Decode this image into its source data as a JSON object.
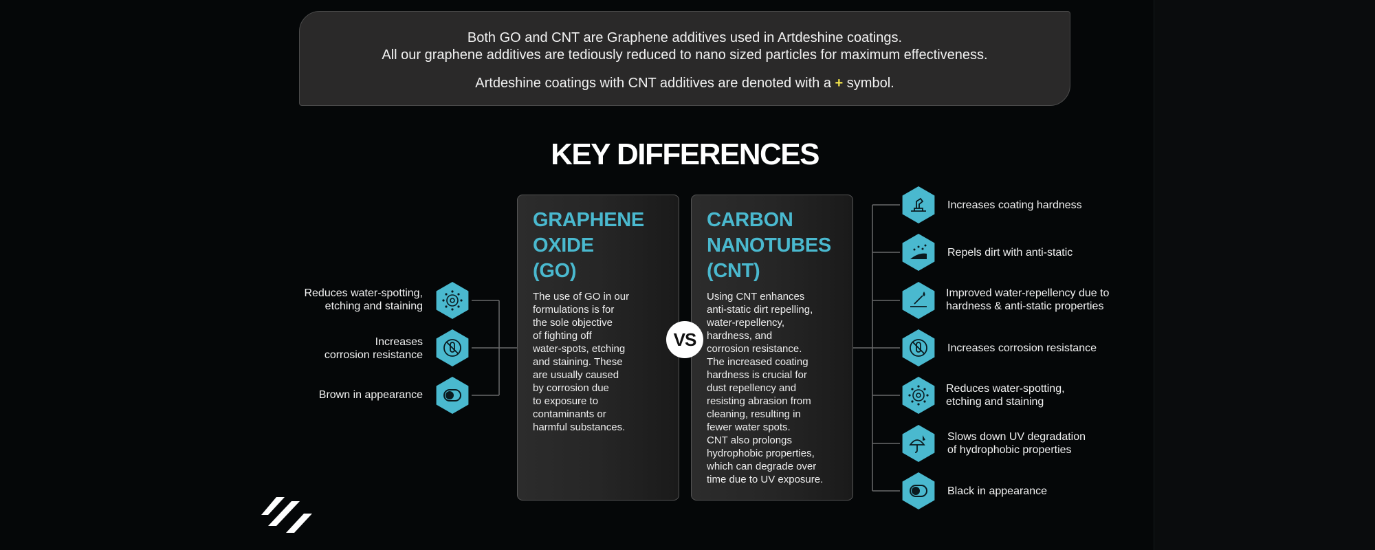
{
  "colors": {
    "accent": "#4ab9cf",
    "plus": "#f2e34a",
    "background": "#050708",
    "box": "#2a2929"
  },
  "intro": {
    "line1": "Both GO and CNT are Graphene additives used in Artdeshine coatings.",
    "line2": "All our graphene additives are tediously reduced to nano sized particles for maximum effectiveness.",
    "line3_before": "Artdeshine coatings with CNT additives are denoted with a",
    "line3_symbol": "+",
    "line3_after": "symbol."
  },
  "title": "KEY DIFFERENCES",
  "vs": "VS",
  "go": {
    "heading": [
      "GRAPHENE",
      "OXIDE",
      "(GO)"
    ],
    "body": [
      "The use of GO in our",
      "formulations is for",
      "the sole objective",
      "of fighting off",
      "water-spots, etching",
      "and staining. These",
      "are usually caused",
      "by corrosion due",
      "to exposure to",
      "contaminants or",
      "harmful substances."
    ],
    "features": [
      {
        "lines": [
          "Reduces water-spotting,",
          "etching and staining"
        ],
        "icon": "water-drops-icon"
      },
      {
        "lines": [
          "Increases",
          "corrosion resistance"
        ],
        "icon": "no-corrosion-icon"
      },
      {
        "lines": [
          "Brown in appearance"
        ],
        "icon": "appearance-toggle-icon"
      }
    ]
  },
  "cnt": {
    "heading": [
      "CARBON",
      "NANOTUBES",
      "(CNT)"
    ],
    "body": [
      "Using CNT enhances",
      "anti-static dirt repelling,",
      "water-repellency,",
      "hardness, and",
      "corrosion resistance.",
      "The increased coating",
      "hardness is crucial for",
      "dust repellency and",
      "resisting abrasion from",
      "cleaning, resulting in",
      "fewer water spots.",
      "CNT also prolongs",
      "hydrophobic properties,",
      "which can degrade over",
      "time due to UV exposure."
    ],
    "features": [
      {
        "lines": [
          "Increases coating hardness"
        ],
        "icon": "hardness-icon"
      },
      {
        "lines": [
          "Repels dirt with anti-static"
        ],
        "icon": "dirt-repel-icon"
      },
      {
        "lines": [
          "Improved water-repellency due to",
          "hardness & anti-static properties"
        ],
        "icon": "water-repel-icon"
      },
      {
        "lines": [
          "Increases corrosion resistance"
        ],
        "icon": "no-corrosion-icon"
      },
      {
        "lines": [
          "Reduces water-spotting,",
          "etching and staining"
        ],
        "icon": "water-drops-icon"
      },
      {
        "lines": [
          "Slows down UV degradation",
          "of hydrophobic properties"
        ],
        "icon": "uv-umbrella-icon"
      },
      {
        "lines": [
          "Black in appearance"
        ],
        "icon": "appearance-toggle-icon"
      }
    ]
  }
}
